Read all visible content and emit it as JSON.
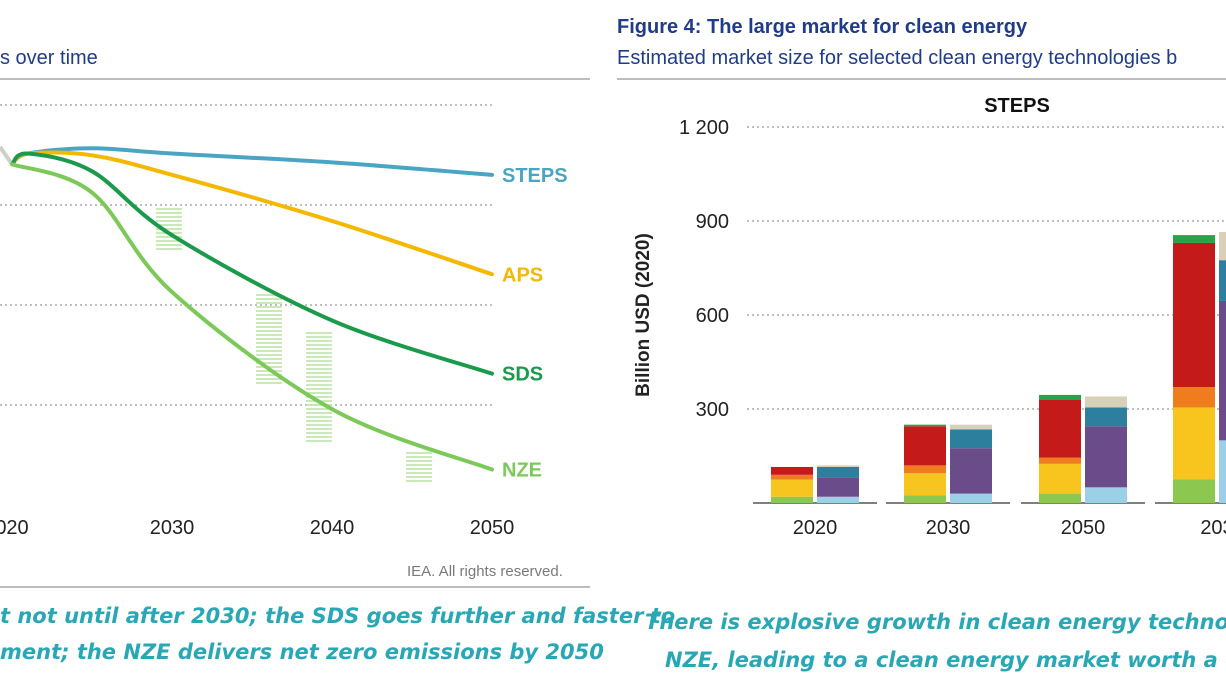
{
  "left_panel": {
    "subtitle": "s over time",
    "credit": "IEA. All rights reserved.",
    "caption_line1": "t not until after 2030; the SDS goes further and faster to",
    "caption_line2": "ment; the NZE delivers net zero emissions by 2050"
  },
  "right_panel": {
    "title": "Figure 4: The large market for clean energy",
    "subtitle": "Estimated market size for selected clean energy technologies b",
    "caption_line1": "There is explosive growth in clean energy technolog",
    "caption_line2": "NZE, leading to a clean energy market worth a cu"
  },
  "chart_data": [
    {
      "type": "line",
      "x_ticks": [
        "020",
        "2030",
        "2040",
        "2050"
      ],
      "grid": true,
      "series": [
        {
          "name": "STEPS",
          "color": "#4aa5c4",
          "points": [
            [
              2020,
              96
            ],
            [
              2021,
              99
            ],
            [
              2025,
              100.5
            ],
            [
              2030,
              99
            ],
            [
              2040,
              96.5
            ],
            [
              2050,
              93
            ]
          ]
        },
        {
          "name": "APS",
          "color": "#f5b800",
          "points": [
            [
              2020,
              96
            ],
            [
              2021,
              99
            ],
            [
              2025,
              98.5
            ],
            [
              2030,
              93
            ],
            [
              2040,
              80
            ],
            [
              2050,
              65
            ]
          ]
        },
        {
          "name": "SDS",
          "color": "#1a9a4a",
          "points": [
            [
              2020,
              96
            ],
            [
              2021,
              99
            ],
            [
              2025,
              94
            ],
            [
              2030,
              76
            ],
            [
              2040,
              52
            ],
            [
              2050,
              37
            ]
          ]
        },
        {
          "name": "NZE",
          "color": "#7cc95a",
          "points": [
            [
              2020,
              96
            ],
            [
              2025,
              88
            ],
            [
              2030,
              60
            ],
            [
              2040,
              27
            ],
            [
              2050,
              10
            ]
          ]
        }
      ]
    },
    {
      "type": "bar",
      "panel_label": "STEPS",
      "ylabel": "Billion USD (2020)",
      "ylim": [
        0,
        1200
      ],
      "y_ticks": [
        "1 200",
        "900",
        "600",
        "300"
      ],
      "y_tick_values": [
        1200,
        900,
        600,
        300
      ],
      "grid": true,
      "categories": [
        "2020",
        "2030",
        "2050",
        "203"
      ],
      "stacks": [
        {
          "category": "2020",
          "bars": [
            {
              "segments": [
                {
                  "color": "#8cc850",
                  "value": 20
                },
                {
                  "color": "#f8c51e",
                  "value": 55
                },
                {
                  "color": "#ef7d1e",
                  "value": 15
                },
                {
                  "color": "#c41a1a",
                  "value": 25
                }
              ]
            },
            {
              "segments": [
                {
                  "color": "#9bd0e6",
                  "value": 20
                },
                {
                  "color": "#6b4c8a",
                  "value": 60
                },
                {
                  "color": "#2d7f9e",
                  "value": 35
                },
                {
                  "color": "#d8d0b8",
                  "value": 5
                }
              ]
            }
          ]
        },
        {
          "category": "2030",
          "bars": [
            {
              "segments": [
                {
                  "color": "#8cc850",
                  "value": 25
                },
                {
                  "color": "#f8c51e",
                  "value": 70
                },
                {
                  "color": "#ef7d1e",
                  "value": 25
                },
                {
                  "color": "#c41a1a",
                  "value": 125
                },
                {
                  "color": "#2aa24a",
                  "value": 5
                }
              ]
            },
            {
              "segments": [
                {
                  "color": "#9bd0e6",
                  "value": 30
                },
                {
                  "color": "#6b4c8a",
                  "value": 145
                },
                {
                  "color": "#2d7f9e",
                  "value": 60
                },
                {
                  "color": "#d8d0b8",
                  "value": 15
                }
              ]
            }
          ]
        },
        {
          "category": "2050",
          "bars": [
            {
              "segments": [
                {
                  "color": "#8cc850",
                  "value": 30
                },
                {
                  "color": "#f8c51e",
                  "value": 95
                },
                {
                  "color": "#ef7d1e",
                  "value": 20
                },
                {
                  "color": "#c41a1a",
                  "value": 185
                },
                {
                  "color": "#2aa24a",
                  "value": 15
                }
              ]
            },
            {
              "segments": [
                {
                  "color": "#9bd0e6",
                  "value": 50
                },
                {
                  "color": "#6b4c8a",
                  "value": 195
                },
                {
                  "color": "#2d7f9e",
                  "value": 60
                },
                {
                  "color": "#d8d0b8",
                  "value": 35
                }
              ]
            }
          ]
        },
        {
          "category": "203",
          "bars": [
            {
              "segments": [
                {
                  "color": "#8cc850",
                  "value": 75
                },
                {
                  "color": "#f8c51e",
                  "value": 230
                },
                {
                  "color": "#ef7d1e",
                  "value": 65
                },
                {
                  "color": "#c41a1a",
                  "value": 460
                },
                {
                  "color": "#2aa24a",
                  "value": 25
                }
              ]
            },
            {
              "segments": [
                {
                  "color": "#9bd0e6",
                  "value": 200
                },
                {
                  "color": "#6b4c8a",
                  "value": 445
                },
                {
                  "color": "#2d7f9e",
                  "value": 130
                },
                {
                  "color": "#d8d0b8",
                  "value": 90
                }
              ]
            }
          ]
        }
      ]
    }
  ]
}
